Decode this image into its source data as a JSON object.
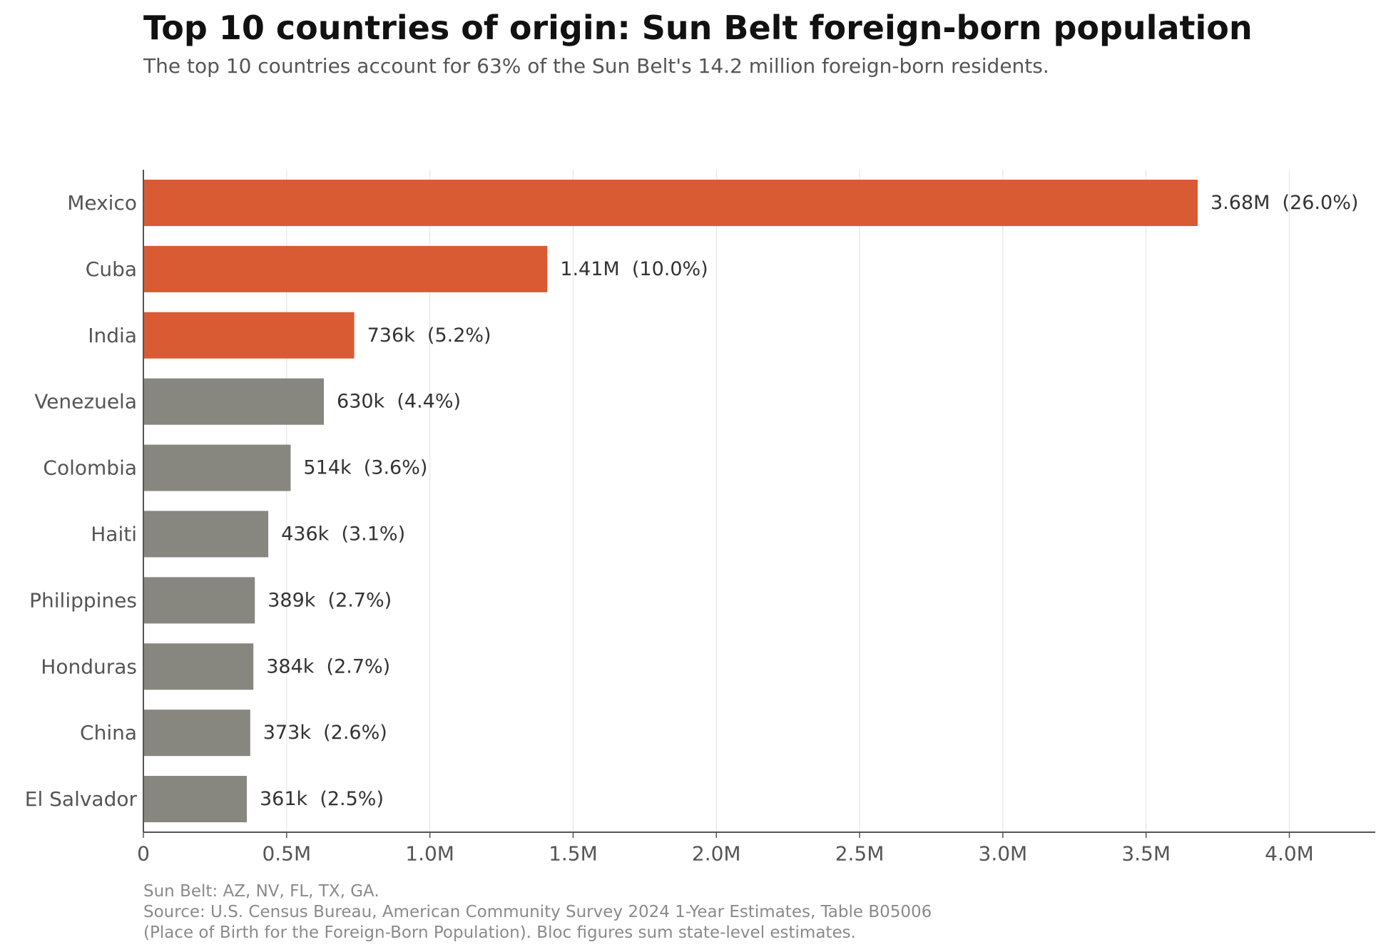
{
  "title": "Top 10 countries of origin: Sun Belt foreign-born population",
  "subtitle": "The top 10 countries account for 63% of the Sun Belt's 14.2 million foreign-born residents.",
  "footer": {
    "line1": "Sun Belt: AZ, NV, FL, TX, GA.",
    "line2": "Source: U.S. Census Bureau, American Community Survey 2024 1-Year Estimates, Table B05006",
    "line3": "(Place of Birth for the Foreign-Born Population). Bloc figures sum state-level estimates."
  },
  "colors": {
    "highlight": "#d95b33",
    "base": "#878780",
    "grid": "#e6e6e6",
    "axis": "#555555",
    "label": "#333333",
    "tick": "#555555"
  },
  "chart_data": {
    "type": "bar",
    "orientation": "horizontal",
    "categories": [
      "Mexico",
      "Cuba",
      "India",
      "Venezuela",
      "Colombia",
      "Haiti",
      "Philippines",
      "Honduras",
      "China",
      "El Salvador"
    ],
    "values": [
      3680000,
      1410000,
      736000,
      630000,
      514000,
      436000,
      389000,
      384000,
      373000,
      361000
    ],
    "labels": [
      "3.68M  (26.0%)",
      "1.41M  (10.0%)",
      "736k  (5.2%)",
      "630k  (4.4%)",
      "514k  (3.6%)",
      "436k  (3.1%)",
      "389k  (2.7%)",
      "384k  (2.7%)",
      "373k  (2.6%)",
      "361k  (2.5%)"
    ],
    "highlighted": [
      true,
      true,
      true,
      false,
      false,
      false,
      false,
      false,
      false,
      false
    ],
    "xticks": [
      0,
      500000,
      1000000,
      1500000,
      2000000,
      2500000,
      3000000,
      3500000,
      4000000
    ],
    "xtick_labels": [
      "0",
      "0.5M",
      "1.0M",
      "1.5M",
      "2.0M",
      "2.5M",
      "3.0M",
      "3.5M",
      "4.0M"
    ],
    "xlim": [
      0,
      4300000
    ],
    "grid": "vertical",
    "xlabel": "",
    "ylabel": ""
  }
}
